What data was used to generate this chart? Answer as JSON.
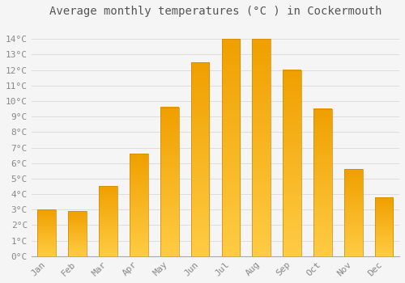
{
  "title": "Average monthly temperatures (°C ) in Cockermouth",
  "months": [
    "Jan",
    "Feb",
    "Mar",
    "Apr",
    "May",
    "Jun",
    "Jul",
    "Aug",
    "Sep",
    "Oct",
    "Nov",
    "Dec"
  ],
  "values": [
    3.0,
    2.9,
    4.5,
    6.6,
    9.6,
    12.5,
    14.0,
    14.0,
    12.0,
    9.5,
    5.6,
    3.8
  ],
  "bar_color": "#FDB827",
  "bar_edge_color": "#CC8800",
  "background_color": "#F5F5F5",
  "grid_color": "#DDDDDD",
  "text_color": "#888888",
  "title_color": "#555555",
  "ylim": [
    0,
    15
  ],
  "yticks": [
    0,
    1,
    2,
    3,
    4,
    5,
    6,
    7,
    8,
    9,
    10,
    11,
    12,
    13,
    14
  ],
  "title_fontsize": 10,
  "tick_fontsize": 8,
  "font_family": "monospace",
  "bar_width": 0.6
}
